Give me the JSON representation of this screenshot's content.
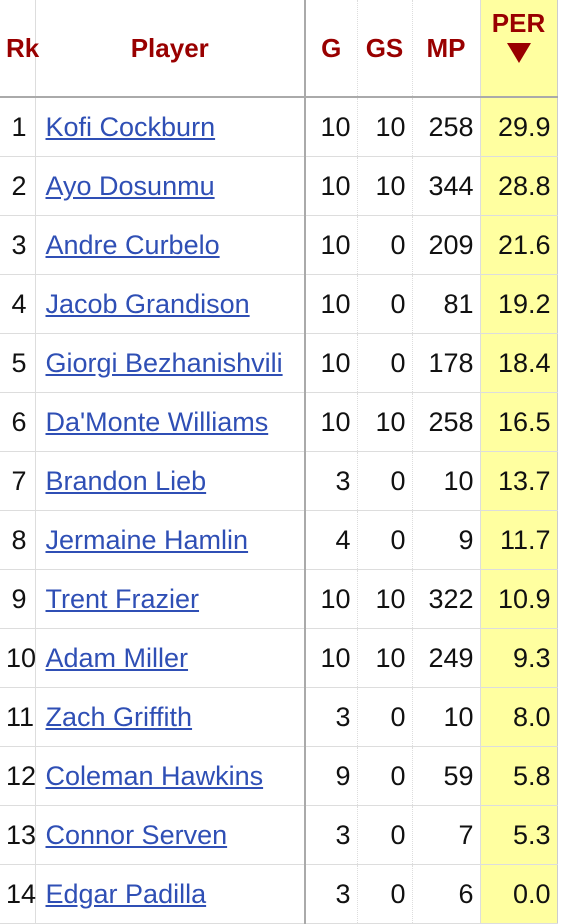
{
  "table": {
    "columns": [
      "Rk",
      "Player",
      "G",
      "GS",
      "MP",
      "PER"
    ],
    "rows": [
      [
        1,
        "Kofi Cockburn",
        10,
        10,
        258,
        "29.9"
      ],
      [
        2,
        "Ayo Dosunmu",
        10,
        10,
        344,
        "28.8"
      ],
      [
        3,
        "Andre Curbelo",
        10,
        0,
        209,
        "21.6"
      ],
      [
        4,
        "Jacob Grandison",
        10,
        0,
        81,
        "19.2"
      ],
      [
        5,
        "Giorgi Bezhanishvili",
        10,
        0,
        178,
        "18.4"
      ],
      [
        6,
        "Da'Monte Williams",
        10,
        10,
        258,
        "16.5"
      ],
      [
        7,
        "Brandon Lieb",
        3,
        0,
        10,
        "13.7"
      ],
      [
        8,
        "Jermaine Hamlin",
        4,
        0,
        9,
        "11.7"
      ],
      [
        9,
        "Trent Frazier",
        10,
        10,
        322,
        "10.9"
      ],
      [
        10,
        "Adam Miller",
        10,
        10,
        249,
        "9.3"
      ],
      [
        11,
        "Zach Griffith",
        3,
        0,
        10,
        "8.0"
      ],
      [
        12,
        "Coleman Hawkins",
        9,
        0,
        59,
        "5.8"
      ],
      [
        13,
        "Connor Serven",
        3,
        0,
        7,
        "5.3"
      ],
      [
        14,
        "Edgar Padilla",
        3,
        0,
        6,
        "0.0"
      ]
    ]
  }
}
